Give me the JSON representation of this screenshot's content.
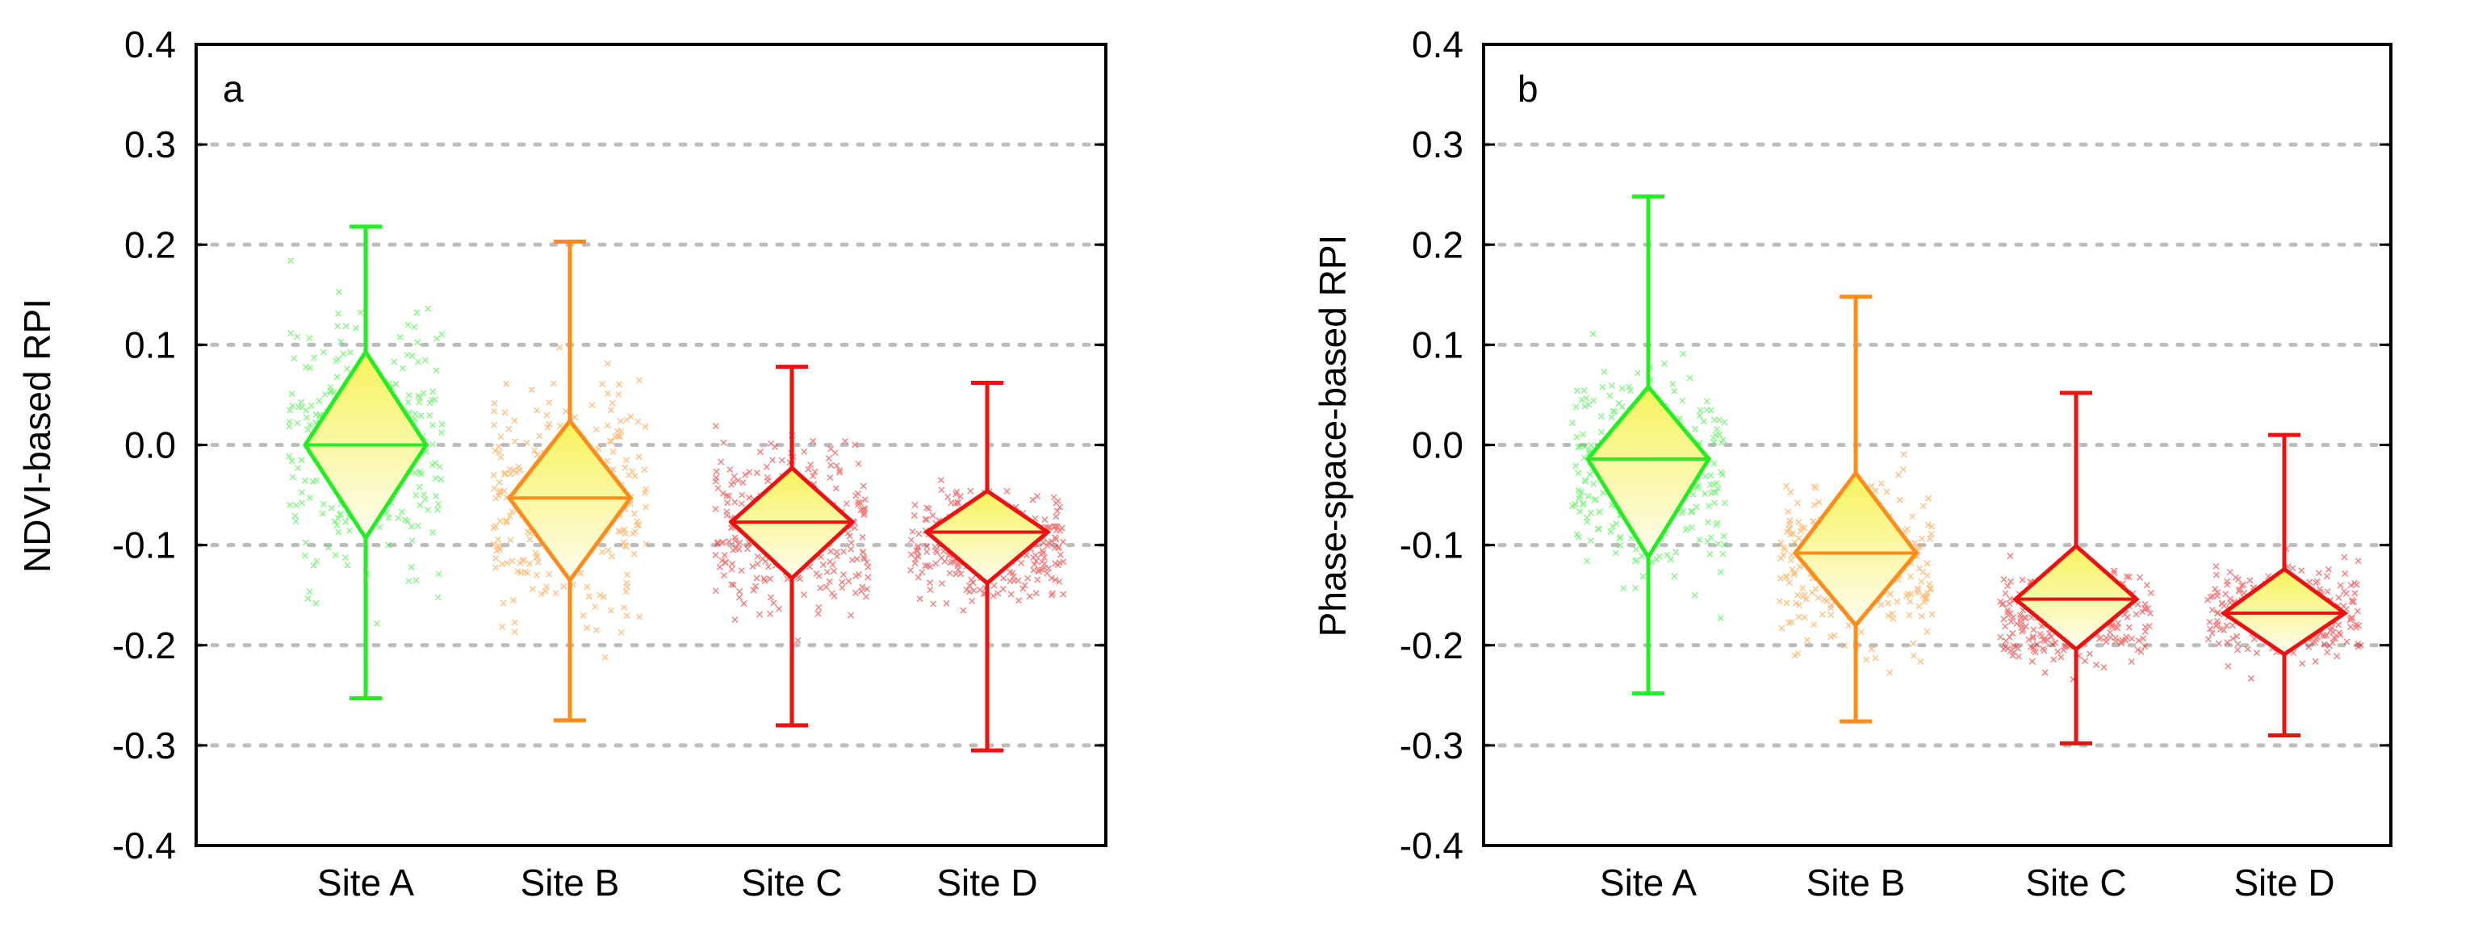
{
  "chart_data": [
    {
      "type": "box",
      "panel_label": "a",
      "title": "",
      "xlabel": "",
      "ylabel": "NDVI-based RPI",
      "ylim": [
        -0.4,
        0.4
      ],
      "yticks": [
        "-0.4",
        "-0.3",
        "-0.2",
        "-0.1",
        "0.0",
        "0.1",
        "0.2",
        "0.3",
        "0.4"
      ],
      "grid": "horizontal dotted",
      "categories": [
        "Site A",
        "Site B",
        "Site C",
        "Site D"
      ],
      "colors": [
        "#22ee22",
        "#ff8c1a",
        "#ee1111",
        "#ee1111"
      ],
      "series": [
        {
          "name": "Site A",
          "whisker_low": -0.253,
          "q1": -0.093,
          "median": 0.0,
          "q3": 0.093,
          "whisker_high": 0.218,
          "scatter_low": -0.2,
          "scatter_high": 0.2
        },
        {
          "name": "Site B",
          "whisker_low": -0.275,
          "q1": -0.135,
          "median": -0.053,
          "q3": 0.024,
          "whisker_high": 0.203,
          "scatter_low": -0.24,
          "scatter_high": 0.12
        },
        {
          "name": "Site C",
          "whisker_low": -0.28,
          "q1": -0.133,
          "median": -0.077,
          "q3": -0.023,
          "whisker_high": 0.078,
          "scatter_low": -0.22,
          "scatter_high": 0.04
        },
        {
          "name": "Site D",
          "whisker_low": -0.305,
          "q1": -0.138,
          "median": -0.087,
          "q3": -0.046,
          "whisker_high": 0.062,
          "scatter_low": -0.18,
          "scatter_high": -0.02
        }
      ]
    },
    {
      "type": "box",
      "panel_label": "b",
      "title": "",
      "xlabel": "",
      "ylabel": "Phase-space-based RPI",
      "ylim": [
        -0.4,
        0.4
      ],
      "yticks": [
        "-0.4",
        "-0.3",
        "-0.2",
        "-0.1",
        "0.0",
        "0.1",
        "0.2",
        "0.3",
        "0.4"
      ],
      "grid": "horizontal dotted",
      "categories": [
        "Site A",
        "Site B",
        "Site C",
        "Site D"
      ],
      "colors": [
        "#22ee22",
        "#ff8c1a",
        "#ee1111",
        "#ee1111"
      ],
      "series": [
        {
          "name": "Site A",
          "whisker_low": -0.248,
          "q1": -0.112,
          "median": -0.014,
          "q3": 0.058,
          "whisker_high": 0.248,
          "scatter_low": -0.2,
          "scatter_high": 0.14
        },
        {
          "name": "Site B",
          "whisker_low": -0.276,
          "q1": -0.18,
          "median": -0.108,
          "q3": -0.028,
          "whisker_high": 0.148,
          "scatter_low": -0.24,
          "scatter_high": 0.0
        },
        {
          "name": "Site C",
          "whisker_low": -0.298,
          "q1": -0.204,
          "median": -0.154,
          "q3": -0.101,
          "whisker_high": 0.052,
          "scatter_low": -0.24,
          "scatter_high": -0.1
        },
        {
          "name": "Site D",
          "whisker_low": -0.29,
          "q1": -0.209,
          "median": -0.168,
          "q3": -0.124,
          "whisker_high": 0.01,
          "scatter_low": -0.24,
          "scatter_high": -0.1
        }
      ]
    }
  ]
}
